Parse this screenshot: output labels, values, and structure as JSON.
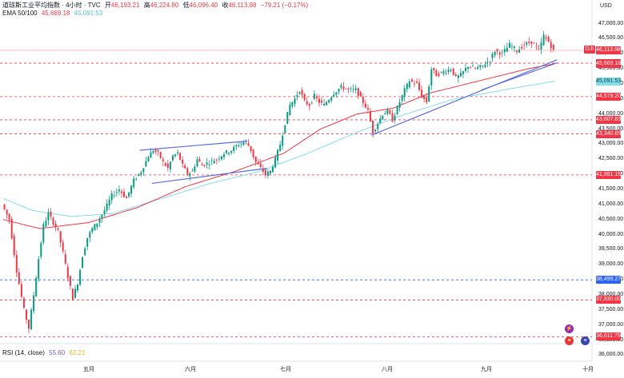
{
  "header": {
    "symbol_title": "道琼斯工业平均指数 · 4小时 · TVC",
    "open_label": "开",
    "open_value": "46,193.21",
    "high_label": "高",
    "high_value": "46,224.80",
    "low_label": "低",
    "low_value": "46,096.40",
    "close_label": "收",
    "close_value": "46,113.98",
    "change_value": "−79.21 (−0.17%)",
    "ema_label": "EMA 50/100",
    "ema_50_value": "45,669.18",
    "ema_100_value": "45,091.53",
    "rsi_label": "RSI (14, close)",
    "rsi_value_1": "55.60",
    "rsi_value_2": "62.21"
  },
  "currency": "USD",
  "symbol_badge": "DJI",
  "icons": [
    "lightning-icon",
    "us-flag-icon"
  ],
  "colors": {
    "up": "#089981",
    "down": "#f23645",
    "ema50": "#f23645",
    "ema100": "#80deea",
    "trendline": "#5b6ee1",
    "blue_level": "#2962ff",
    "grid_price_line": "#f7a8ae"
  },
  "chart_data": {
    "type": "candlestick",
    "title": "道琼斯工业平均指数 · 4小时 · TVC",
    "ylabel": "USD",
    "ylim": [
      35800,
      47200
    ],
    "y_ticks": [
      "47,000.00",
      "46,500.00",
      "46,000.00",
      "45,500.00",
      "45,000.00",
      "44,500.00",
      "44,000.00",
      "43,500.00",
      "43,000.00",
      "42,500.00",
      "42,000.00",
      "41,500.00",
      "41,000.00",
      "40,500.00",
      "40,000.00",
      "39,500.00",
      "39,000.00",
      "38,500.00",
      "38,000.00",
      "37,500.00",
      "37,000.00",
      "36,500.00",
      "36,000.00"
    ],
    "x_ticks": [
      "五月",
      "六月",
      "七月",
      "八月",
      "九月",
      "十月"
    ],
    "price_path": [
      [
        0,
        41000
      ],
      [
        3,
        40500
      ],
      [
        6,
        38800
      ],
      [
        9,
        37500
      ],
      [
        11,
        36900
      ],
      [
        13,
        38000
      ],
      [
        15,
        39200
      ],
      [
        17,
        40300
      ],
      [
        19,
        40700
      ],
      [
        21,
        40400
      ],
      [
        23,
        40100
      ],
      [
        25,
        39400
      ],
      [
        27,
        38600
      ],
      [
        29,
        37900
      ],
      [
        31,
        38400
      ],
      [
        33,
        39300
      ],
      [
        35,
        39900
      ],
      [
        37,
        40200
      ],
      [
        39,
        40400
      ],
      [
        42,
        40800
      ],
      [
        45,
        41300
      ],
      [
        48,
        41500
      ],
      [
        51,
        41200
      ],
      [
        54,
        41800
      ],
      [
        57,
        42100
      ],
      [
        60,
        42600
      ],
      [
        62,
        42800
      ],
      [
        64,
        42700
      ],
      [
        66,
        42400
      ],
      [
        68,
        42200
      ],
      [
        70,
        42600
      ],
      [
        72,
        42700
      ],
      [
        74,
        42300
      ],
      [
        76,
        42000
      ],
      [
        78,
        42100
      ],
      [
        80,
        42500
      ],
      [
        82,
        42300
      ],
      [
        85,
        42400
      ],
      [
        88,
        42500
      ],
      [
        91,
        42700
      ],
      [
        94,
        42800
      ],
      [
        97,
        43000
      ],
      [
        100,
        43100
      ],
      [
        102,
        42800
      ],
      [
        104,
        42400
      ],
      [
        106,
        42200
      ],
      [
        108,
        42000
      ],
      [
        110,
        42100
      ],
      [
        112,
        42500
      ],
      [
        114,
        43000
      ],
      [
        116,
        43700
      ],
      [
        118,
        44300
      ],
      [
        120,
        44500
      ],
      [
        122,
        44800
      ],
      [
        124,
        44400
      ],
      [
        126,
        44300
      ],
      [
        128,
        44600
      ],
      [
        130,
        44400
      ],
      [
        132,
        44300
      ],
      [
        134,
        44500
      ],
      [
        136,
        44700
      ],
      [
        139,
        44900
      ],
      [
        142,
        44800
      ],
      [
        145,
        44800
      ],
      [
        148,
        44400
      ],
      [
        150,
        44100
      ],
      [
        152,
        43400
      ],
      [
        154,
        43700
      ],
      [
        156,
        44000
      ],
      [
        158,
        44100
      ],
      [
        160,
        43800
      ],
      [
        162,
        44200
      ],
      [
        165,
        44800
      ],
      [
        167,
        45100
      ],
      [
        170,
        45000
      ],
      [
        172,
        44600
      ],
      [
        174,
        44400
      ],
      [
        176,
        45500
      ],
      [
        178,
        45300
      ],
      [
        181,
        45400
      ],
      [
        184,
        45500
      ],
      [
        186,
        45200
      ],
      [
        188,
        45300
      ],
      [
        191,
        45600
      ],
      [
        194,
        45500
      ],
      [
        197,
        45600
      ],
      [
        200,
        45800
      ],
      [
        202,
        46100
      ],
      [
        205,
        46000
      ],
      [
        208,
        46300
      ],
      [
        211,
        46100
      ],
      [
        214,
        46300
      ],
      [
        217,
        46400
      ],
      [
        220,
        46100
      ],
      [
        222,
        46600
      ],
      [
        224,
        46400
      ],
      [
        226,
        46100
      ]
    ],
    "ema50_path": [
      [
        0,
        40500
      ],
      [
        15,
        40200
      ],
      [
        35,
        40400
      ],
      [
        55,
        40900
      ],
      [
        75,
        41600
      ],
      [
        95,
        42100
      ],
      [
        115,
        42700
      ],
      [
        130,
        43500
      ],
      [
        145,
        44000
      ],
      [
        160,
        44200
      ],
      [
        175,
        44700
      ],
      [
        195,
        45100
      ],
      [
        215,
        45500
      ],
      [
        226,
        45669
      ]
    ],
    "ema100_path": [
      [
        0,
        41200
      ],
      [
        12,
        40800
      ],
      [
        28,
        40600
      ],
      [
        45,
        40700
      ],
      [
        65,
        41200
      ],
      [
        85,
        41700
      ],
      [
        105,
        42100
      ],
      [
        125,
        42700
      ],
      [
        145,
        43400
      ],
      [
        165,
        44000
      ],
      [
        185,
        44500
      ],
      [
        205,
        44800
      ],
      [
        226,
        45092
      ]
    ],
    "trendlines": [
      {
        "from": [
          56,
          42800
        ],
        "to": [
          100,
          43100
        ]
      },
      {
        "from": [
          61,
          41700
        ],
        "to": [
          108,
          42200
        ]
      },
      {
        "from": [
          151,
          43300
        ],
        "to": [
          227,
          45800
        ]
      },
      {
        "from": [
          196,
          44800
        ],
        "to": [
          227,
          45700
        ]
      }
    ],
    "levels": [
      {
        "value": 45687.58,
        "label": "45,687.58",
        "color": "#f23645",
        "style": "dashed"
      },
      {
        "value": 45669.18,
        "label": "45,669.18",
        "color": "#f23645",
        "style": "solid"
      },
      {
        "value": 45091.53,
        "label": "45,091.53",
        "color": "#80deea",
        "style": "solid"
      },
      {
        "value": 44579.2,
        "label": "44,579.20",
        "color": "#f23645",
        "style": "dashed"
      },
      {
        "value": 43807.83,
        "label": "43,807.83",
        "color": "#f23645",
        "style": "dashed"
      },
      {
        "value": 43340.69,
        "label": "43,340.69",
        "color": "#f23645",
        "style": "dashed"
      },
      {
        "value": 41981.15,
        "label": "41,981.15",
        "color": "#f23645",
        "style": "dashed"
      },
      {
        "value": 38499.27,
        "label": "38,499.27",
        "color": "#2962ff",
        "style": "dashed"
      },
      {
        "value": 37830.0,
        "label": "37,830.00",
        "color": "#f23645",
        "style": "dashed"
      },
      {
        "value": 36611.79,
        "label": "36,611.79",
        "color": "#f23645",
        "style": "dashed"
      }
    ],
    "last_price": {
      "value": 46113.98,
      "label": "46,113.98"
    }
  }
}
